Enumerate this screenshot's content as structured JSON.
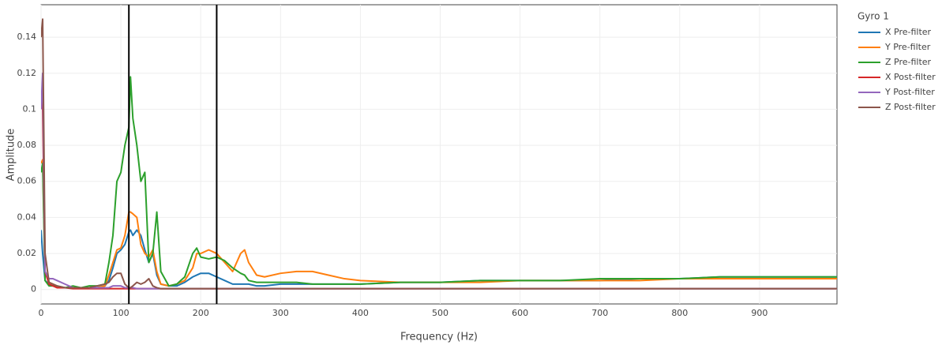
{
  "chart_data": {
    "type": "line",
    "x_label": "Frequency (Hz)",
    "y_label": "Amplitude",
    "legend_title": "Gyro 1",
    "legend_position": "right",
    "grid": true,
    "xlim": [
      0,
      997
    ],
    "ylim": [
      -0.008,
      0.158
    ],
    "xticks": [
      0,
      100,
      200,
      300,
      400,
      500,
      600,
      700,
      800,
      900
    ],
    "yticks": [
      0,
      0.02,
      0.04,
      0.06,
      0.08,
      0.1,
      0.12,
      0.14
    ],
    "vlines": [
      110,
      220
    ],
    "vline_color": "#000000",
    "x": [
      0,
      2,
      5,
      10,
      15,
      20,
      30,
      40,
      50,
      60,
      70,
      80,
      85,
      90,
      95,
      100,
      105,
      110,
      112,
      115,
      120,
      125,
      130,
      135,
      140,
      145,
      150,
      160,
      170,
      180,
      190,
      195,
      200,
      210,
      220,
      230,
      240,
      250,
      255,
      260,
      270,
      280,
      300,
      320,
      340,
      360,
      380,
      400,
      450,
      500,
      550,
      600,
      650,
      700,
      750,
      800,
      850,
      900,
      950,
      997
    ],
    "series": [
      {
        "name": "X Pre-filter",
        "color": "#1f77b4",
        "values": [
          0.033,
          0.02,
          0.005,
          0.003,
          0.002,
          0.002,
          0.001,
          0.001,
          0.001,
          0.001,
          0.001,
          0.002,
          0.005,
          0.012,
          0.02,
          0.022,
          0.025,
          0.032,
          0.033,
          0.03,
          0.033,
          0.03,
          0.022,
          0.015,
          0.02,
          0.008,
          0.003,
          0.002,
          0.002,
          0.004,
          0.007,
          0.008,
          0.009,
          0.009,
          0.007,
          0.005,
          0.003,
          0.003,
          0.003,
          0.003,
          0.002,
          0.002,
          0.003,
          0.003,
          0.003,
          0.003,
          0.003,
          0.003,
          0.004,
          0.004,
          0.005,
          0.005,
          0.005,
          0.005,
          0.006,
          0.006,
          0.007,
          0.007,
          0.007,
          0.007
        ]
      },
      {
        "name": "Y Pre-filter",
        "color": "#ff7f0e",
        "values": [
          0.07,
          0.072,
          0.01,
          0.004,
          0.003,
          0.002,
          0.001,
          0.001,
          0.001,
          0.001,
          0.001,
          0.002,
          0.008,
          0.015,
          0.022,
          0.023,
          0.03,
          0.043,
          0.043,
          0.042,
          0.04,
          0.025,
          0.02,
          0.018,
          0.022,
          0.01,
          0.003,
          0.002,
          0.003,
          0.005,
          0.012,
          0.02,
          0.02,
          0.022,
          0.02,
          0.015,
          0.01,
          0.02,
          0.022,
          0.015,
          0.008,
          0.007,
          0.009,
          0.01,
          0.01,
          0.008,
          0.006,
          0.005,
          0.004,
          0.004,
          0.004,
          0.005,
          0.005,
          0.005,
          0.005,
          0.006,
          0.006,
          0.006,
          0.006,
          0.006
        ]
      },
      {
        "name": "Z Pre-filter",
        "color": "#2ca02c",
        "values": [
          0.065,
          0.07,
          0.005,
          0.002,
          0.002,
          0.002,
          0.001,
          0.002,
          0.001,
          0.002,
          0.002,
          0.003,
          0.015,
          0.03,
          0.06,
          0.065,
          0.08,
          0.09,
          0.118,
          0.095,
          0.08,
          0.06,
          0.065,
          0.015,
          0.02,
          0.043,
          0.01,
          0.002,
          0.003,
          0.007,
          0.02,
          0.023,
          0.018,
          0.017,
          0.018,
          0.016,
          0.012,
          0.009,
          0.008,
          0.005,
          0.004,
          0.004,
          0.004,
          0.004,
          0.003,
          0.003,
          0.003,
          0.003,
          0.004,
          0.004,
          0.005,
          0.005,
          0.005,
          0.006,
          0.006,
          0.006,
          0.007,
          0.007,
          0.007,
          0.007
        ]
      },
      {
        "name": "X Post-filter",
        "color": "#d62728",
        "values": [
          0.11,
          0.1,
          0.01,
          0.003,
          0.002,
          0.001,
          0.001,
          0.0005,
          0.0005,
          0.0005,
          0.0005,
          0.0005,
          0.0005,
          0.0005,
          0.0005,
          0.0005,
          0.0005,
          0.0005,
          0.0005,
          0.0005,
          0.0005,
          0.0005,
          0.0005,
          0.0005,
          0.0005,
          0.0005,
          0.0005,
          0.0005,
          0.0005,
          0.0005,
          0.0005,
          0.0005,
          0.0005,
          0.0005,
          0.0005,
          0.0005,
          0.0005,
          0.0005,
          0.0005,
          0.0005,
          0.0005,
          0.0005,
          0.0005,
          0.0005,
          0.0005,
          0.0005,
          0.0005,
          0.0005,
          0.0005,
          0.0005,
          0.0005,
          0.0005,
          0.0005,
          0.0005,
          0.0005,
          0.0005,
          0.0005,
          0.0005,
          0.0005,
          0.0005
        ]
      },
      {
        "name": "Y Post-filter",
        "color": "#9467bd",
        "values": [
          0.1,
          0.12,
          0.01,
          0.006,
          0.006,
          0.005,
          0.003,
          0.001,
          0.001,
          0.001,
          0.001,
          0.001,
          0.001,
          0.002,
          0.002,
          0.002,
          0.001,
          0.001,
          0.001,
          0.001,
          0.0005,
          0.0005,
          0.0005,
          0.0005,
          0.0005,
          0.0005,
          0.0005,
          0.0005,
          0.0005,
          0.0005,
          0.0005,
          0.0005,
          0.0005,
          0.0005,
          0.0005,
          0.0005,
          0.0005,
          0.0005,
          0.0005,
          0.0005,
          0.0005,
          0.0005,
          0.0005,
          0.0005,
          0.0005,
          0.0005,
          0.0005,
          0.0005,
          0.0005,
          0.0005,
          0.0005,
          0.0005,
          0.0005,
          0.0005,
          0.0005,
          0.0005,
          0.0005,
          0.0005,
          0.0005,
          0.0005
        ]
      },
      {
        "name": "Z Post-filter",
        "color": "#8c564b",
        "values": [
          0.14,
          0.15,
          0.02,
          0.004,
          0.003,
          0.002,
          0.001,
          0.001,
          0.001,
          0.001,
          0.002,
          0.003,
          0.004,
          0.007,
          0.009,
          0.009,
          0.003,
          0.001,
          0.001,
          0.002,
          0.004,
          0.003,
          0.004,
          0.006,
          0.002,
          0.001,
          0.0005,
          0.0005,
          0.0005,
          0.0005,
          0.0005,
          0.0005,
          0.0005,
          0.0005,
          0.0005,
          0.0005,
          0.0005,
          0.0005,
          0.0005,
          0.0005,
          0.0005,
          0.0005,
          0.0005,
          0.0005,
          0.0005,
          0.0005,
          0.0005,
          0.0005,
          0.0005,
          0.0005,
          0.0005,
          0.0005,
          0.0005,
          0.0005,
          0.0005,
          0.0005,
          0.0005,
          0.0005,
          0.0005,
          0.0005
        ]
      }
    ]
  }
}
